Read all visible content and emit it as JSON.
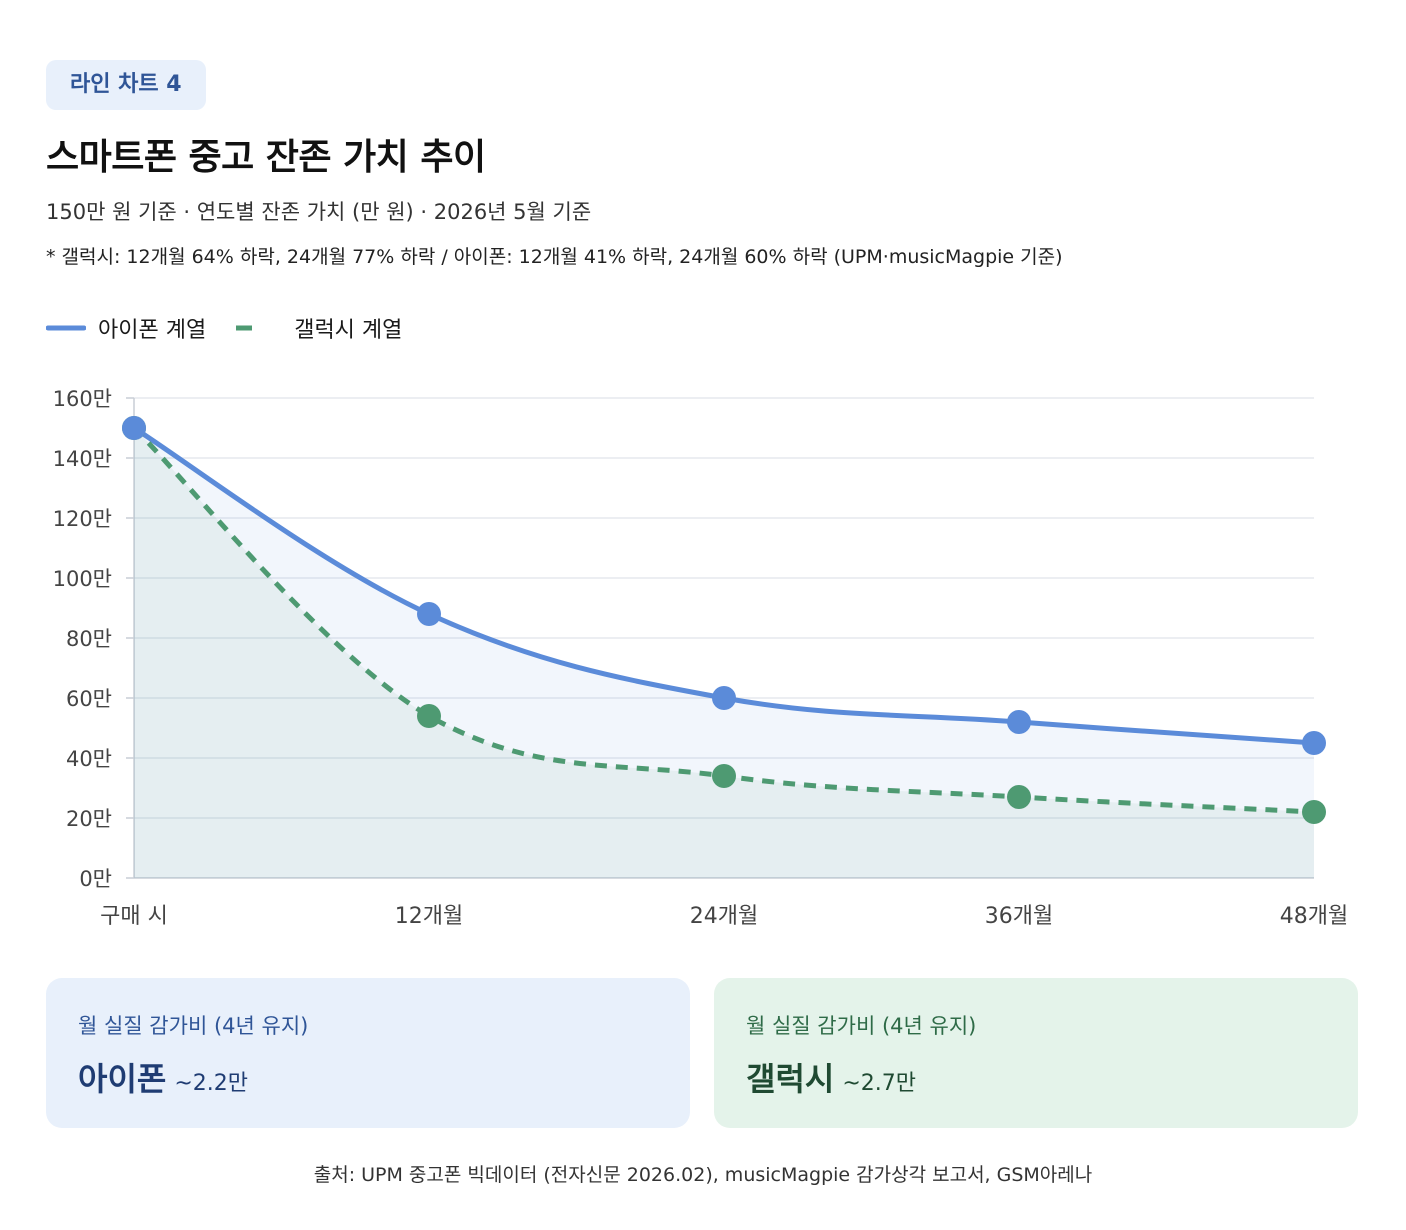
{
  "badge": "라인 차트 4",
  "title": "스마트폰 중고 잔존 가치 추이",
  "subtitle": "150만 원 기준 · 연도별 잔존 가치 (만 원) · 2026년 5월 기준",
  "footnote": "* 갤럭시: 12개월 64% 하락, 24개월 77% 하락 / 아이폰: 12개월 41% 하락, 24개월 60% 하락 (UPM·musicMagpie 기준)",
  "colors": {
    "iphone": "#5b8bd9",
    "galaxy": "#4e9a72",
    "grid": "#e6e9ee",
    "axis": "#c9ced6",
    "tick_text": "#444444"
  },
  "chart_data": {
    "type": "line",
    "categories": [
      "구매 시",
      "12개월",
      "24개월",
      "36개월",
      "48개월"
    ],
    "series": [
      {
        "name": "아이폰 계열",
        "values": [
          150,
          88,
          60,
          52,
          45
        ],
        "style": "solid"
      },
      {
        "name": "갤럭시 계열",
        "values": [
          150,
          54,
          34,
          27,
          22
        ],
        "style": "dashed"
      }
    ],
    "ylim": [
      0,
      160
    ],
    "y_ticks": [
      0,
      20,
      40,
      60,
      80,
      100,
      120,
      140,
      160
    ],
    "y_tick_suffix": "만",
    "grid": true,
    "legend": "top-left",
    "area_fill": true
  },
  "cards": [
    {
      "label": "월 실질 감가비 (4년 유지)",
      "name": "아이폰",
      "amount": "~2.2만"
    },
    {
      "label": "월 실질 감가비 (4년 유지)",
      "name": "갤럭시",
      "amount": "~2.7만"
    }
  ],
  "source": "출처: UPM 중고폰 빅데이터 (전자신문 2026.02), musicMagpie 감가상각 보고서, GSM아레나"
}
